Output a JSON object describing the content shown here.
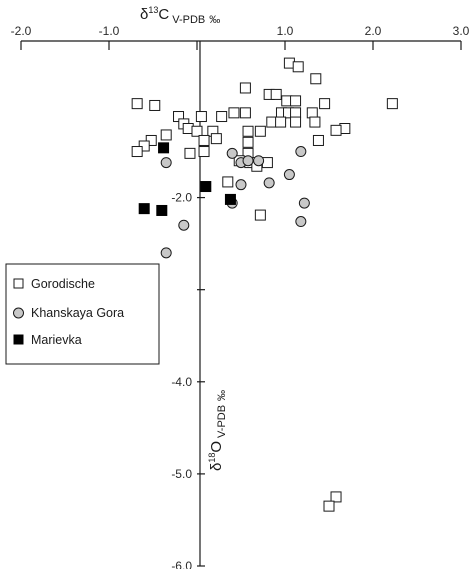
{
  "chart_data": {
    "type": "scatter",
    "x_axis": {
      "label_prefix": "δ",
      "label_sup": "13",
      "label_main": "C",
      "label_sub": "V-PDB",
      "label_unit": "‰",
      "range": [
        -2.0,
        3.0
      ],
      "ticks": [
        -2.0,
        -1.0,
        0,
        1.0,
        2.0,
        3.0
      ],
      "tick_labels": [
        "-2.0",
        "-1.0",
        "",
        "1.0",
        "2.0",
        "3.0"
      ],
      "position": "top"
    },
    "y_axis": {
      "label_prefix": "δ",
      "label_sup": "18",
      "label_main": "O",
      "label_sub": "V-PDB",
      "label_unit": "‰",
      "range": [
        -6.0,
        -0.3
      ],
      "ticks": [
        -2.0,
        -3.0,
        -4.0,
        -5.0,
        -6.0
      ],
      "tick_labels": [
        "-2.0",
        "",
        "-4.0",
        "-5.0",
        "-6.0"
      ],
      "position": "at x=0"
    },
    "grid": false,
    "legend_position": "left-middle",
    "series": [
      {
        "name": "Gorodische",
        "marker": "open-square",
        "color": "#ffffff",
        "stroke": "#1a1a1a",
        "points": [
          [
            1.05,
            -0.54
          ],
          [
            1.15,
            -0.58
          ],
          [
            1.35,
            -0.71
          ],
          [
            0.55,
            -0.81
          ],
          [
            0.82,
            -0.88
          ],
          [
            0.9,
            -0.88
          ],
          [
            1.02,
            -0.95
          ],
          [
            1.12,
            -0.95
          ],
          [
            1.45,
            -0.98
          ],
          [
            2.22,
            -0.98
          ],
          [
            -0.68,
            -0.98
          ],
          [
            -0.48,
            -1.0
          ],
          [
            0.42,
            -1.08
          ],
          [
            0.55,
            -1.08
          ],
          [
            0.96,
            -1.08
          ],
          [
            1.04,
            -1.08
          ],
          [
            1.12,
            -1.08
          ],
          [
            1.31,
            -1.08
          ],
          [
            0.05,
            -1.12
          ],
          [
            -0.21,
            -1.12
          ],
          [
            0.28,
            -1.12
          ],
          [
            -0.15,
            -1.2
          ],
          [
            0.85,
            -1.18
          ],
          [
            0.95,
            -1.18
          ],
          [
            1.12,
            -1.18
          ],
          [
            1.34,
            -1.18
          ],
          [
            -0.1,
            -1.25
          ],
          [
            0.0,
            -1.28
          ],
          [
            0.18,
            -1.28
          ],
          [
            1.68,
            -1.25
          ],
          [
            1.58,
            -1.27
          ],
          [
            -0.35,
            -1.32
          ],
          [
            0.58,
            -1.28
          ],
          [
            0.72,
            -1.28
          ],
          [
            -0.52,
            -1.38
          ],
          [
            0.08,
            -1.38
          ],
          [
            0.22,
            -1.36
          ],
          [
            0.58,
            -1.4
          ],
          [
            1.38,
            -1.38
          ],
          [
            -0.6,
            -1.44
          ],
          [
            -0.68,
            -1.5
          ],
          [
            0.08,
            -1.5
          ],
          [
            -0.08,
            -1.52
          ],
          [
            0.58,
            -1.52
          ],
          [
            0.48,
            -1.6
          ],
          [
            0.6,
            -1.62
          ],
          [
            0.68,
            -1.66
          ],
          [
            0.8,
            -1.62
          ],
          [
            0.35,
            -1.83
          ],
          [
            0.72,
            -2.19
          ],
          [
            1.58,
            -5.25
          ],
          [
            1.5,
            -5.35
          ]
        ]
      },
      {
        "name": "Khanskaya Gora",
        "marker": "filled-circle",
        "color": "#c8c8c8",
        "stroke": "#1a1a1a",
        "points": [
          [
            -0.35,
            -1.62
          ],
          [
            0.4,
            -1.52
          ],
          [
            0.5,
            -1.62
          ],
          [
            0.58,
            -1.6
          ],
          [
            0.7,
            -1.6
          ],
          [
            1.18,
            -1.5
          ],
          [
            1.05,
            -1.75
          ],
          [
            0.5,
            -1.86
          ],
          [
            0.82,
            -1.84
          ],
          [
            0.4,
            -2.06
          ],
          [
            1.22,
            -2.06
          ],
          [
            -0.15,
            -2.3
          ],
          [
            1.18,
            -2.26
          ],
          [
            -0.35,
            -2.6
          ]
        ]
      },
      {
        "name": "Marievka",
        "marker": "filled-square",
        "color": "#000000",
        "stroke": "#000000",
        "points": [
          [
            -0.38,
            -1.46
          ],
          [
            0.1,
            -1.88
          ],
          [
            0.38,
            -2.02
          ],
          [
            -0.6,
            -2.12
          ],
          [
            -0.4,
            -2.14
          ]
        ]
      }
    ]
  }
}
